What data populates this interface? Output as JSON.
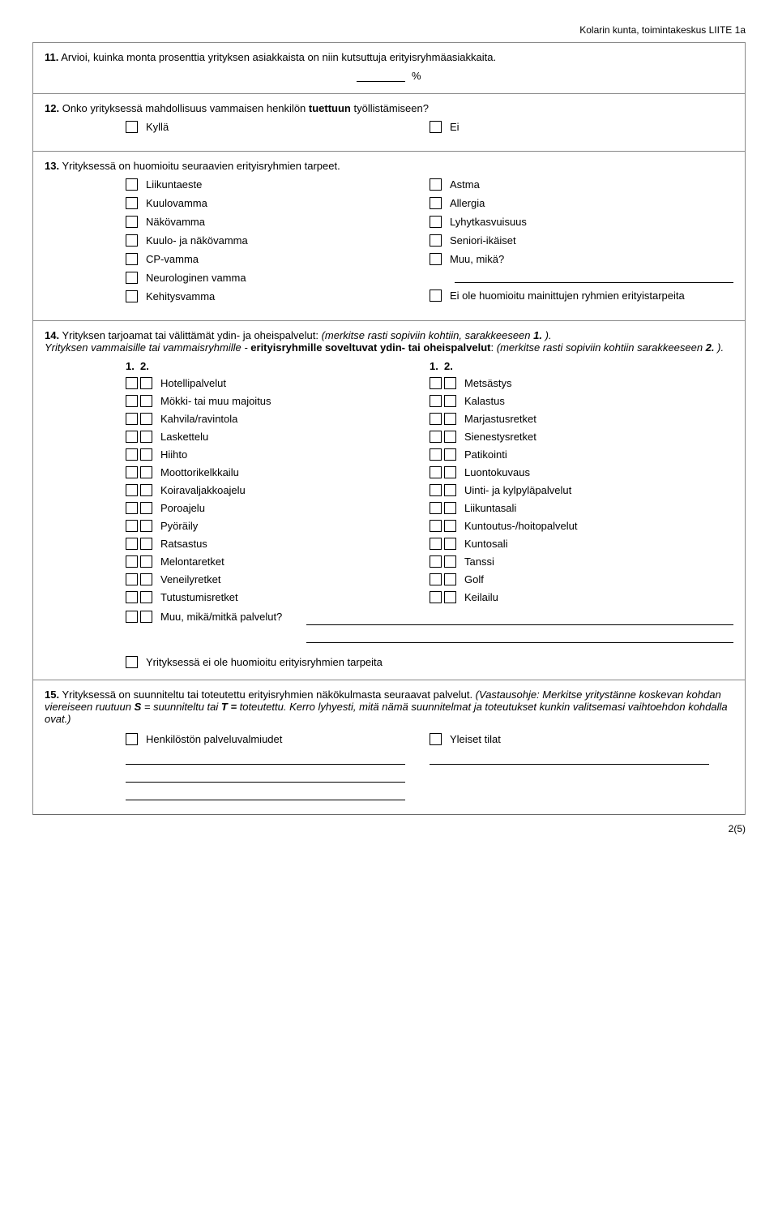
{
  "header": "Kolarin kunta, toimintakeskus LIITE 1a",
  "q11": {
    "num": "11.",
    "text": "Arvioi, kuinka monta prosenttia yrityksen asiakkaista on niin kutsuttuja erityisryhmäasiakkaita.",
    "pct": "%"
  },
  "q12": {
    "num": "12.",
    "text_a": "Onko yrityksessä mahdollisuus vammaisen henkilön ",
    "text_b": "tuettuun",
    "text_c": " työllistämiseen?",
    "yes": "Kyllä",
    "no": "Ei"
  },
  "q13": {
    "num": "13.",
    "text": "Yrityksessä on huomioitu seuraavien erityisryhmien tarpeet.",
    "left": [
      "Liikuntaeste",
      "Kuulovamma",
      "Näkövamma",
      "Kuulo- ja näkövamma",
      "CP-vamma",
      "Neurologinen vamma",
      "Kehitysvamma"
    ],
    "right": [
      "Astma",
      "Allergia",
      "Lyhytkasvuisuus",
      "Seniori-ikäiset",
      "Muu, mikä?",
      "",
      "Ei ole huomioitu mainittujen ryhmien erityistarpeita"
    ]
  },
  "q14": {
    "num": "14.",
    "s1a": "Yrityksen tarjoamat tai välittämät ",
    "s1b": "ydin- ja oheispalvelut",
    "s1c": ": ",
    "s1d": "(merkitse rasti sopiviin kohtiin, sarakkeeseen ",
    "s1e": "1. ",
    "s1f": ").",
    "s2a": "Yrityksen  vammaisille tai vammaisryhmille - ",
    "s2b": "erityisryhmille soveltuvat ydin- tai oheispalvelut",
    "s2c": ":  ",
    "s2d": "(merkitse rasti sopiviin kohtiin sarakkeeseen  ",
    "s2e": "2. ",
    "s2f": ").",
    "h1": "1.",
    "h2": "2.",
    "left": [
      "Hotellipalvelut",
      "Mökki- tai muu majoitus",
      "Kahvila/ravintola",
      "Laskettelu",
      "Hiihto",
      "Moottorikelkkailu",
      "Koiravaljakkoajelu",
      "Poroajelu",
      "Pyöräily",
      "Ratsastus",
      "Melontaretket",
      "Veneilyretket",
      "Tutustumisretket"
    ],
    "right": [
      "Metsästys",
      "Kalastus",
      "Marjastusretket",
      "Sienestysretket",
      "Patikointi",
      "Luontokuvaus",
      "Uinti- ja kylpyläpalvelut",
      "Liikuntasali",
      "Kuntoutus-/hoitopalvelut",
      "Kuntosali",
      "Tanssi",
      "Golf",
      "Keilailu"
    ],
    "muu": "Muu, mikä/mitkä palvelut?",
    "last": "Yrityksessä ei ole huomioitu erityisryhmien tarpeita"
  },
  "q15": {
    "num": "15.",
    "a": "Yrityksessä on ",
    "b": "suunniteltu",
    "c": " tai ",
    "d": "toteutettu",
    "e": " erityisryhmien näkökulmasta seuraavat palvelut. ",
    "f": "(Vastausohje: Merkitse yritystänne koskevan kohdan viereiseen ruutuun  ",
    "g": "S",
    "h": "  = suunniteltu tai  ",
    "i": "T =",
    "j": "  toteutettu. Kerro lyhyesti, mitä nämä suunnitelmat ja toteutukset kunkin valitsemasi vaihtoehdon kohdalla ovat.)",
    "left": "Henkilöstön palveluvalmiudet",
    "right": "Yleiset tilat"
  },
  "page": "2(5)"
}
